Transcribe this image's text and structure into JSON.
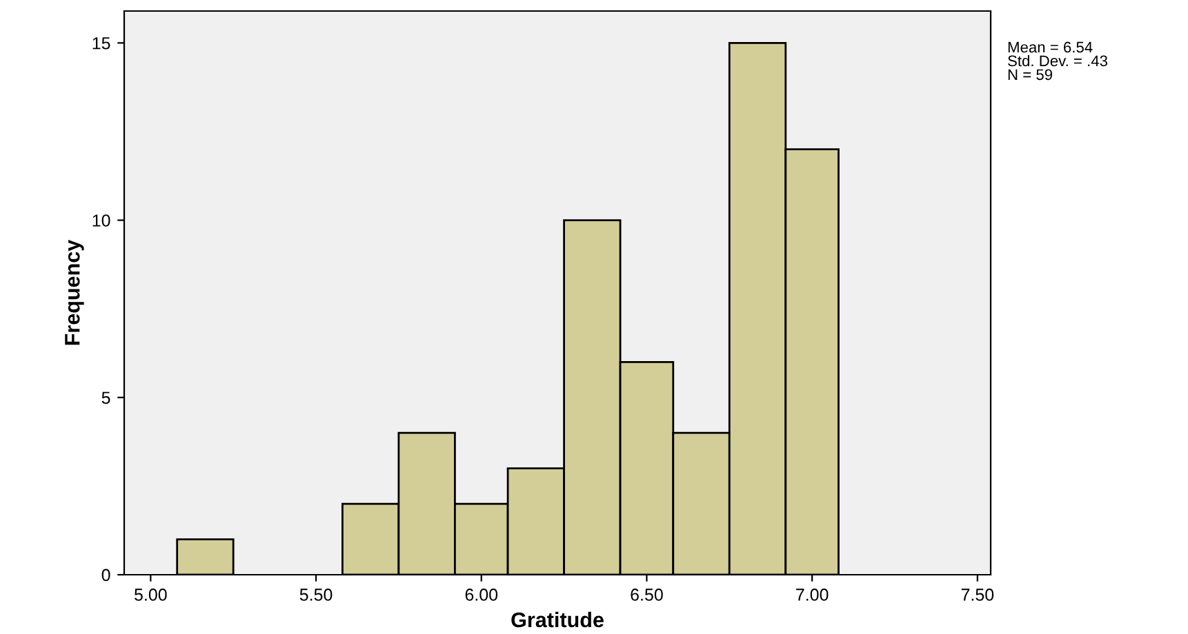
{
  "chart_data": {
    "type": "histogram",
    "xlabel": "Gratitude",
    "ylabel": "Frequency",
    "bins": [
      5.08,
      5.25,
      5.58,
      5.75,
      5.92,
      6.08,
      6.25,
      6.42,
      6.58,
      6.75,
      6.92,
      7.08
    ],
    "values": [
      1,
      0,
      2,
      4,
      2,
      3,
      10,
      6,
      4,
      15,
      12
    ],
    "color": "#d3ce97",
    "xlim": [
      4.92,
      7.54
    ],
    "ylim": [
      0,
      15.9
    ],
    "xticks": [
      {
        "value": 5.0,
        "label": "5.00"
      },
      {
        "value": 5.5,
        "label": "5.50"
      },
      {
        "value": 6.0,
        "label": "6.00"
      },
      {
        "value": 6.5,
        "label": "6.50"
      },
      {
        "value": 7.0,
        "label": "7.00"
      },
      {
        "value": 7.5,
        "label": "7.50"
      }
    ],
    "yticks": [
      0,
      5,
      10,
      15
    ],
    "grid": false,
    "annotations": [
      "Mean = 6.54\nStd. Dev. = .43\nN = 59"
    ]
  }
}
